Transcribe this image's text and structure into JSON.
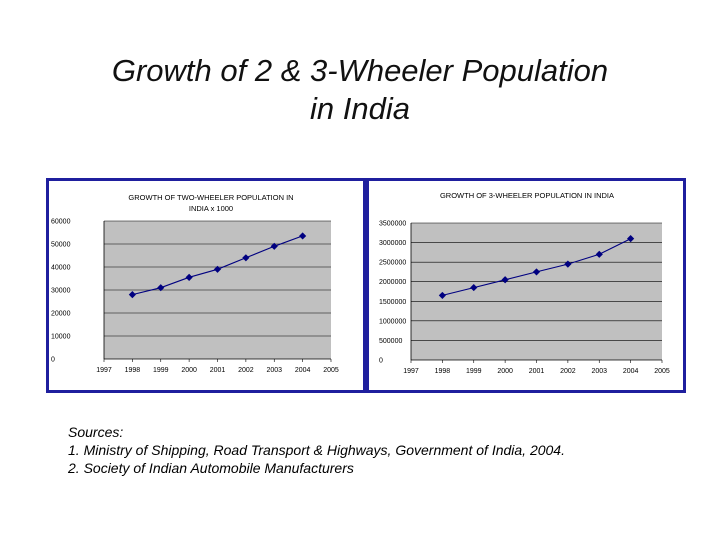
{
  "slide": {
    "title_line1": "Growth of 2 & 3-Wheeler Population",
    "title_line2": "in India"
  },
  "chart_data": [
    {
      "type": "line",
      "title_lines": [
        "GROWTH OF TWO-WHEELER POPULATION IN",
        "INDIA x 1000"
      ],
      "categories": [
        "1997",
        "1998",
        "1999",
        "2000",
        "2001",
        "2002",
        "2003",
        "2004",
        "2005"
      ],
      "series": [
        {
          "name": "Two-wheeler population (x 1000)",
          "x": [
            "1998",
            "1999",
            "2000",
            "2001",
            "2002",
            "2003",
            "2004"
          ],
          "values": [
            28000,
            31000,
            35500,
            39000,
            44000,
            49000,
            53500
          ]
        }
      ],
      "y_ticks": [
        0,
        10000,
        20000,
        30000,
        40000,
        50000,
        60000
      ],
      "ylim": [
        0,
        60000
      ],
      "xlabel": "",
      "ylabel": "",
      "grid": true,
      "colors": {
        "line": "#000080",
        "marker": "#000080",
        "plot_bg": "#c0c0c0"
      }
    },
    {
      "type": "line",
      "title_lines": [
        "GROWTH OF 3-WHEELER POPULATION IN INDIA"
      ],
      "categories": [
        "1997",
        "1998",
        "1999",
        "2000",
        "2001",
        "2002",
        "2003",
        "2004",
        "2005"
      ],
      "series": [
        {
          "name": "Three-wheeler population",
          "x": [
            "1998",
            "1999",
            "2000",
            "2001",
            "2002",
            "2003",
            "2004"
          ],
          "values": [
            1650000,
            1850000,
            2050000,
            2250000,
            2450000,
            2700000,
            3100000
          ]
        }
      ],
      "y_ticks": [
        0,
        500000,
        1000000,
        1500000,
        2000000,
        2500000,
        3000000,
        3500000
      ],
      "ylim": [
        0,
        3500000
      ],
      "xlabel": "",
      "ylabel": "",
      "grid": true,
      "colors": {
        "line": "#000080",
        "marker": "#000080",
        "plot_bg": "#c0c0c0"
      }
    }
  ],
  "sources": {
    "heading": "Sources:",
    "items": [
      "1. Ministry of Shipping, Road Transport & Highways, Government of India, 2004.",
      "2. Society of Indian Automobile Manufacturers"
    ]
  }
}
